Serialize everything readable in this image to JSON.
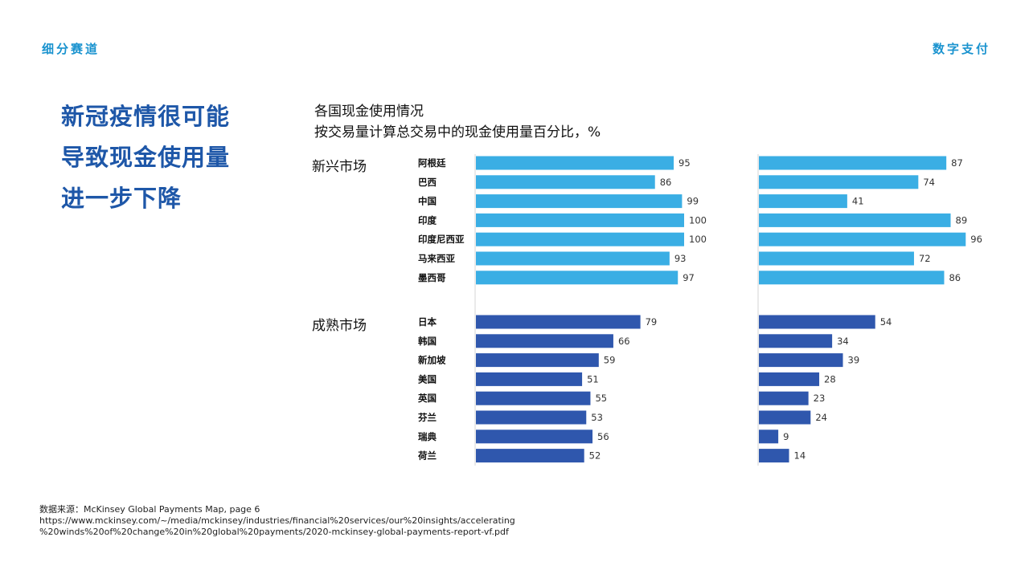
{
  "header": {
    "left_label": "细分赛道",
    "right_label": "数字支付"
  },
  "headline": {
    "lines": [
      "新冠疫情很可能",
      "导致现金使用量",
      "进一步下降"
    ]
  },
  "chart_header": {
    "line1": "各国现金使用情况",
    "line2": "按交易量计算总交易中的现金使用量百分比，%"
  },
  "source": {
    "line1": "数据来源：McKinsey Global Payments Map, page 6",
    "line2": "https://www.mckinsey.com/~/media/mckinsey/industries/financial%20services/our%20insights/accelerating",
    "line3": "%20winds%20of%20change%20in%20global%20payments/2020-mckinsey-global-payments-report-vf.pdf"
  },
  "colors": {
    "emerging": "#3aaee4",
    "mature": "#2f57ad",
    "accent": "#1a93cf",
    "headline": "#1e57a8"
  },
  "chart_data": {
    "type": "bar",
    "orientation": "horizontal",
    "title": "各国现金使用情况",
    "subtitle": "按交易量计算总交易中的现金使用量百分比，%",
    "groups": [
      {
        "name": "新兴市场",
        "categories": [
          "阿根廷",
          "巴西",
          "中国",
          "印度",
          "印度尼西亚",
          "马来西亚",
          "墨西哥"
        ]
      },
      {
        "name": "成熟市场",
        "categories": [
          "日本",
          "韩国",
          "新加坡",
          "美国",
          "英国",
          "芬兰",
          "瑞典",
          "荷兰"
        ]
      }
    ],
    "series": [
      {
        "name": "panel-1",
        "values": [
          95,
          86,
          99,
          100,
          100,
          93,
          97,
          79,
          66,
          59,
          51,
          55,
          53,
          56,
          52
        ]
      },
      {
        "name": "panel-2",
        "values": [
          87,
          74,
          41,
          89,
          96,
          72,
          86,
          54,
          34,
          39,
          28,
          23,
          24,
          9,
          14
        ]
      }
    ],
    "xlim": [
      0,
      100
    ]
  }
}
